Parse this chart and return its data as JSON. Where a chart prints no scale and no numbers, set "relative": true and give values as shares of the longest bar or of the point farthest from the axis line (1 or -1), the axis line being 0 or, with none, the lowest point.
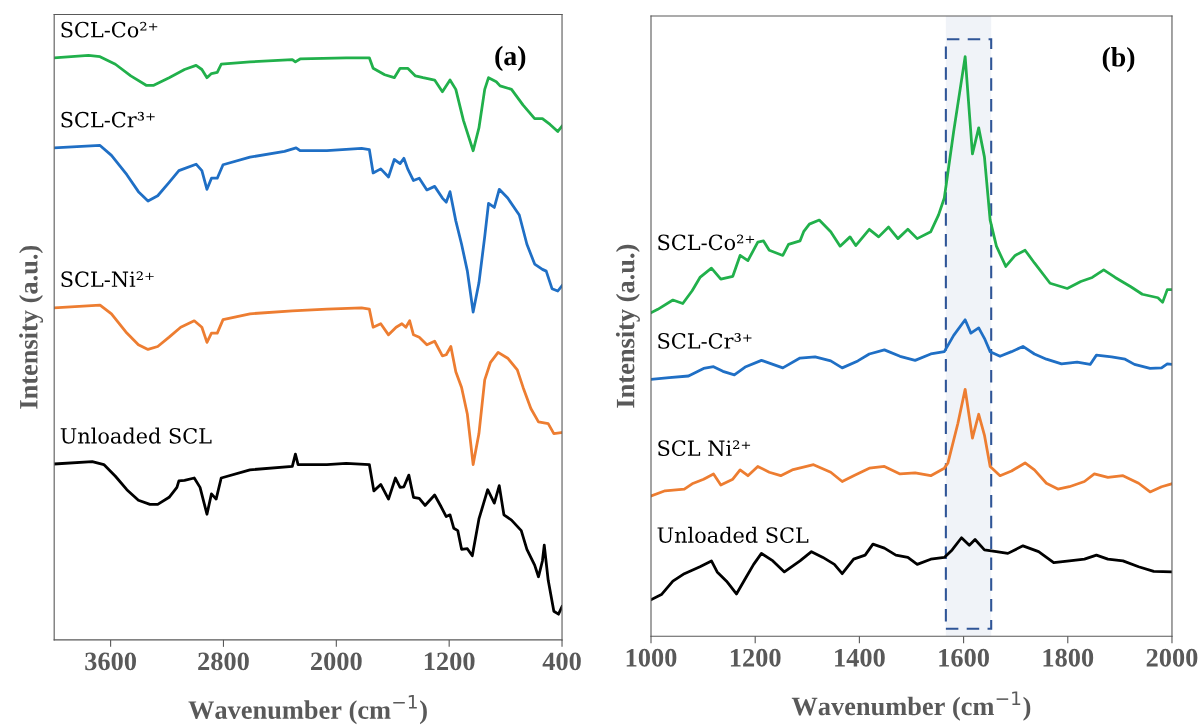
{
  "chart_data": [
    {
      "type": "line",
      "title": "(a)",
      "xlabel": "Wavenumber (cm$^{−1}$)",
      "ylabel": "Intensity (a.u.)",
      "xlim": [
        4000,
        400
      ],
      "xticks": [
        3600,
        2800,
        2000,
        1200,
        400
      ],
      "relative": true,
      "tick_labels": "x",
      "series": [
        {
          "name": "SCL-Co²⁺",
          "color": "#21b04b",
          "x": [
            4000,
            3757,
            3675,
            3566,
            3457,
            3348,
            3294,
            3185,
            3076,
            2994,
            2953,
            2917,
            2885,
            2844,
            2816,
            2612,
            2312,
            2290,
            2257,
            1930,
            1766,
            1739,
            1657,
            1589,
            1548,
            1494,
            1439,
            1385,
            1303,
            1248,
            1194,
            1153,
            1099,
            1030,
            989,
            948,
            921,
            866,
            839,
            758,
            676,
            594,
            539,
            485,
            430,
            400
          ],
          "values": [
            0.996,
            1.0,
            0.998,
            0.985,
            0.965,
            0.949,
            0.949,
            0.962,
            0.976,
            0.983,
            0.976,
            0.962,
            0.969,
            0.971,
            0.985,
            0.989,
            0.993,
            0.989,
            0.994,
            0.996,
            0.996,
            0.978,
            0.967,
            0.962,
            0.978,
            0.978,
            0.965,
            0.962,
            0.958,
            0.938,
            0.958,
            0.942,
            0.889,
            0.837,
            0.876,
            0.942,
            0.962,
            0.955,
            0.948,
            0.942,
            0.915,
            0.892,
            0.892,
            0.882,
            0.87,
            0.879
          ]
        },
        {
          "name": "SCL-Cr³⁺",
          "color": "#1f6fc5",
          "x": [
            4000,
            3675,
            3594,
            3485,
            3403,
            3335,
            3266,
            3185,
            3116,
            2994,
            2953,
            2917,
            2885,
            2844,
            2803,
            2612,
            2367,
            2285,
            2257,
            2067,
            1821,
            1766,
            1739,
            1685,
            1630,
            1589,
            1548,
            1521,
            1494,
            1453,
            1412,
            1358,
            1303,
            1248,
            1221,
            1194,
            1153,
            1112,
            1071,
            1030,
            989,
            948,
            921,
            880,
            845,
            785,
            703,
            649,
            594,
            539,
            512,
            471,
            430,
            400
          ],
          "values": [
            0.842,
            0.846,
            0.829,
            0.796,
            0.767,
            0.751,
            0.76,
            0.783,
            0.803,
            0.814,
            0.803,
            0.771,
            0.79,
            0.79,
            0.813,
            0.826,
            0.836,
            0.842,
            0.837,
            0.837,
            0.841,
            0.839,
            0.799,
            0.806,
            0.792,
            0.822,
            0.815,
            0.824,
            0.806,
            0.786,
            0.79,
            0.77,
            0.776,
            0.756,
            0.749,
            0.767,
            0.717,
            0.677,
            0.631,
            0.561,
            0.611,
            0.69,
            0.747,
            0.74,
            0.771,
            0.756,
            0.727,
            0.677,
            0.643,
            0.634,
            0.631,
            0.601,
            0.597,
            0.606
          ]
        },
        {
          "name": "SCL-Ni²⁺",
          "color": "#ed7d31",
          "x": [
            4000,
            3675,
            3594,
            3485,
            3403,
            3335,
            3266,
            3185,
            3103,
            3007,
            2953,
            2917,
            2885,
            2844,
            2803,
            2612,
            2312,
            2067,
            1821,
            1766,
            1739,
            1685,
            1630,
            1576,
            1535,
            1507,
            1480,
            1453,
            1412,
            1358,
            1303,
            1248,
            1221,
            1188,
            1153,
            1112,
            1071,
            1030,
            989,
            948,
            907,
            853,
            785,
            717,
            676,
            621,
            567,
            498,
            458,
            400
          ],
          "values": [
            0.568,
            0.573,
            0.558,
            0.525,
            0.505,
            0.497,
            0.502,
            0.518,
            0.535,
            0.546,
            0.535,
            0.509,
            0.525,
            0.525,
            0.548,
            0.558,
            0.563,
            0.566,
            0.568,
            0.566,
            0.535,
            0.541,
            0.522,
            0.535,
            0.541,
            0.535,
            0.546,
            0.522,
            0.518,
            0.505,
            0.511,
            0.486,
            0.488,
            0.502,
            0.459,
            0.432,
            0.386,
            0.3,
            0.353,
            0.445,
            0.475,
            0.492,
            0.482,
            0.462,
            0.432,
            0.396,
            0.373,
            0.37,
            0.353,
            0.355
          ]
        },
        {
          "name": "Unloaded SCL",
          "color": "#000000",
          "x": [
            4000,
            3730,
            3648,
            3566,
            3485,
            3403,
            3321,
            3266,
            3185,
            3130,
            3116,
            3076,
            3007,
            2966,
            2917,
            2885,
            2852,
            2816,
            2612,
            2312,
            2290,
            2271,
            2067,
            1930,
            1766,
            1734,
            1685,
            1630,
            1581,
            1548,
            1521,
            1486,
            1453,
            1412,
            1371,
            1303,
            1262,
            1221,
            1194,
            1167,
            1139,
            1112,
            1071,
            1036,
            989,
            927,
            880,
            845,
            812,
            758,
            689,
            649,
            594,
            567,
            539,
            526,
            498,
            458,
            425,
            400
          ],
          "values": [
            0.301,
            0.305,
            0.3,
            0.28,
            0.257,
            0.239,
            0.232,
            0.232,
            0.244,
            0.261,
            0.272,
            0.273,
            0.277,
            0.261,
            0.215,
            0.25,
            0.241,
            0.277,
            0.291,
            0.297,
            0.318,
            0.3,
            0.3,
            0.302,
            0.3,
            0.255,
            0.266,
            0.241,
            0.277,
            0.261,
            0.262,
            0.282,
            0.244,
            0.242,
            0.23,
            0.248,
            0.23,
            0.211,
            0.214,
            0.191,
            0.187,
            0.155,
            0.156,
            0.144,
            0.207,
            0.257,
            0.234,
            0.264,
            0.214,
            0.205,
            0.187,
            0.155,
            0.128,
            0.108,
            0.135,
            0.162,
            0.102,
            0.049,
            0.044,
            0.057
          ]
        }
      ]
    },
    {
      "type": "line",
      "title": "(b)",
      "xlabel": "Wavenumber (cm$^{−1}$)",
      "ylabel": "Intensity (a.u.)",
      "xlim": [
        1000,
        2000
      ],
      "xticks": [
        1000,
        1200,
        1400,
        1600,
        1800,
        2000
      ],
      "relative": true,
      "tick_labels": "x",
      "bands": [
        {
          "axis": "x",
          "from": 1566,
          "to": 1653,
          "color": "#2f5597"
        }
      ],
      "series": [
        {
          "name": "SCL-Co²⁺",
          "color": "#21b04b",
          "x": [
            1000,
            1013,
            1042,
            1061,
            1079,
            1094,
            1116,
            1134,
            1157,
            1171,
            1186,
            1205,
            1216,
            1227,
            1253,
            1264,
            1286,
            1293,
            1304,
            1323,
            1345,
            1363,
            1382,
            1393,
            1419,
            1437,
            1456,
            1474,
            1493,
            1511,
            1537,
            1552,
            1563,
            1581,
            1603,
            1617,
            1629,
            1640,
            1651,
            1663,
            1681,
            1699,
            1718,
            1736,
            1766,
            1799,
            1825,
            1847,
            1869,
            1891,
            1921,
            1943,
            1973,
            1982,
            1991,
            2000
          ],
          "values": [
            0.558,
            0.564,
            0.58,
            0.574,
            0.596,
            0.619,
            0.635,
            0.616,
            0.621,
            0.657,
            0.648,
            0.68,
            0.682,
            0.666,
            0.657,
            0.676,
            0.682,
            0.698,
            0.711,
            0.718,
            0.698,
            0.673,
            0.689,
            0.674,
            0.702,
            0.689,
            0.706,
            0.686,
            0.702,
            0.686,
            0.698,
            0.727,
            0.756,
            0.871,
            1.0,
            0.832,
            0.877,
            0.827,
            0.718,
            0.673,
            0.638,
            0.657,
            0.666,
            0.644,
            0.609,
            0.6,
            0.612,
            0.619,
            0.632,
            0.619,
            0.603,
            0.59,
            0.584,
            0.576,
            0.598,
            0.598
          ]
        },
        {
          "name": "SCL-Cr³⁺",
          "color": "#1f6fc5",
          "x": [
            1000,
            1035,
            1072,
            1101,
            1120,
            1138,
            1160,
            1182,
            1212,
            1234,
            1253,
            1286,
            1315,
            1345,
            1367,
            1397,
            1419,
            1448,
            1478,
            1507,
            1537,
            1563,
            1581,
            1603,
            1614,
            1629,
            1640,
            1651,
            1670,
            1692,
            1714,
            1736,
            1759,
            1788,
            1818,
            1843,
            1855,
            1884,
            1910,
            1928,
            1958,
            1980,
            1991,
            2000
          ],
          "values": [
            0.443,
            0.446,
            0.449,
            0.462,
            0.465,
            0.457,
            0.451,
            0.465,
            0.476,
            0.469,
            0.463,
            0.48,
            0.482,
            0.475,
            0.463,
            0.475,
            0.487,
            0.494,
            0.483,
            0.476,
            0.487,
            0.491,
            0.519,
            0.546,
            0.523,
            0.532,
            0.514,
            0.491,
            0.483,
            0.491,
            0.5,
            0.487,
            0.478,
            0.47,
            0.473,
            0.469,
            0.485,
            0.482,
            0.478,
            0.469,
            0.462,
            0.463,
            0.47,
            0.469
          ]
        },
        {
          "name": "SCL Ni²⁺",
          "color": "#ed7d31",
          "x": [
            1000,
            1027,
            1064,
            1079,
            1101,
            1120,
            1134,
            1157,
            1171,
            1186,
            1205,
            1227,
            1249,
            1271,
            1312,
            1345,
            1367,
            1389,
            1419,
            1448,
            1478,
            1507,
            1537,
            1563,
            1570,
            1589,
            1603,
            1617,
            1629,
            1640,
            1651,
            1670,
            1692,
            1718,
            1736,
            1759,
            1781,
            1803,
            1832,
            1851,
            1877,
            1906,
            1936,
            1958,
            1980,
            2000
          ],
          "values": [
            0.242,
            0.251,
            0.254,
            0.263,
            0.271,
            0.28,
            0.261,
            0.271,
            0.287,
            0.277,
            0.293,
            0.283,
            0.277,
            0.287,
            0.296,
            0.283,
            0.267,
            0.277,
            0.29,
            0.293,
            0.28,
            0.282,
            0.277,
            0.29,
            0.299,
            0.367,
            0.426,
            0.342,
            0.383,
            0.347,
            0.293,
            0.277,
            0.285,
            0.299,
            0.287,
            0.264,
            0.254,
            0.258,
            0.267,
            0.28,
            0.274,
            0.277,
            0.264,
            0.249,
            0.258,
            0.263
          ]
        },
        {
          "name": "Unloaded SCL",
          "color": "#000000",
          "x": [
            1000,
            1020,
            1042,
            1064,
            1094,
            1116,
            1127,
            1145,
            1164,
            1182,
            1197,
            1212,
            1234,
            1256,
            1286,
            1308,
            1330,
            1352,
            1367,
            1389,
            1411,
            1426,
            1448,
            1470,
            1493,
            1511,
            1537,
            1563,
            1578,
            1596,
            1611,
            1622,
            1640,
            1663,
            1685,
            1714,
            1744,
            1773,
            1803,
            1832,
            1855,
            1877,
            1906,
            1936,
            1965,
            2000
          ],
          "values": [
            0.063,
            0.072,
            0.095,
            0.108,
            0.12,
            0.13,
            0.111,
            0.095,
            0.073,
            0.101,
            0.124,
            0.143,
            0.13,
            0.111,
            0.13,
            0.146,
            0.136,
            0.124,
            0.108,
            0.133,
            0.14,
            0.159,
            0.152,
            0.14,
            0.136,
            0.124,
            0.133,
            0.136,
            0.149,
            0.17,
            0.157,
            0.167,
            0.149,
            0.146,
            0.143,
            0.156,
            0.146,
            0.127,
            0.13,
            0.133,
            0.14,
            0.133,
            0.13,
            0.12,
            0.112,
            0.111
          ]
        }
      ]
    }
  ]
}
